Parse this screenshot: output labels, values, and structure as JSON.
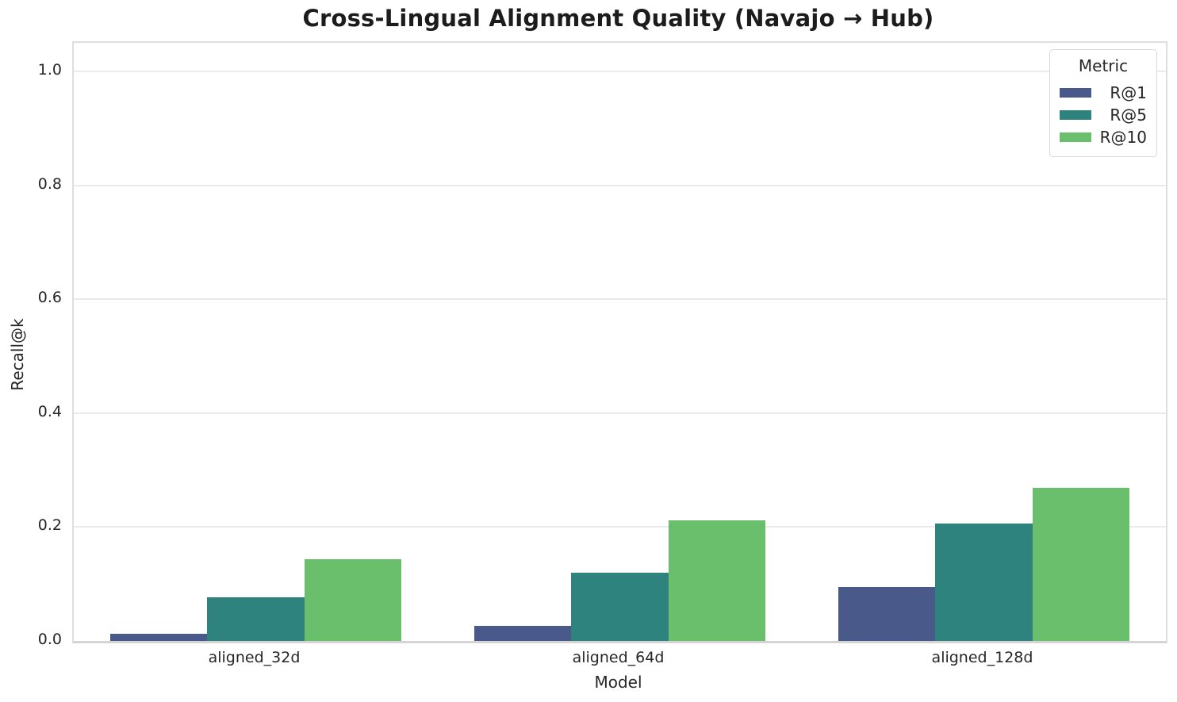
{
  "chart_data": {
    "type": "bar",
    "title": "Cross-Lingual Alignment Quality (Navajo → Hub)",
    "xlabel": "Model",
    "ylabel": "Recall@k",
    "categories": [
      "aligned_32d",
      "aligned_64d",
      "aligned_128d"
    ],
    "series": [
      {
        "name": "R@1",
        "color": "#48598a",
        "values": [
          0.012,
          0.027,
          0.095
        ]
      },
      {
        "name": "R@5",
        "color": "#2f837f",
        "values": [
          0.077,
          0.12,
          0.206
        ]
      },
      {
        "name": "R@10",
        "color": "#6abf6d",
        "values": [
          0.143,
          0.211,
          0.269
        ]
      }
    ],
    "ylim": [
      0,
      1.05
    ],
    "yticks": [
      0.0,
      0.2,
      0.4,
      0.6,
      0.8,
      1.0
    ],
    "grid": true,
    "legend": {
      "title": "Metric",
      "position": "upper right"
    },
    "group_width_fraction": 0.8
  },
  "colors": {
    "background": "#ffffff",
    "gridline": "#eaeaea",
    "spine": "#dedede",
    "text": "#262626",
    "title_text": "#1c1c1c"
  }
}
